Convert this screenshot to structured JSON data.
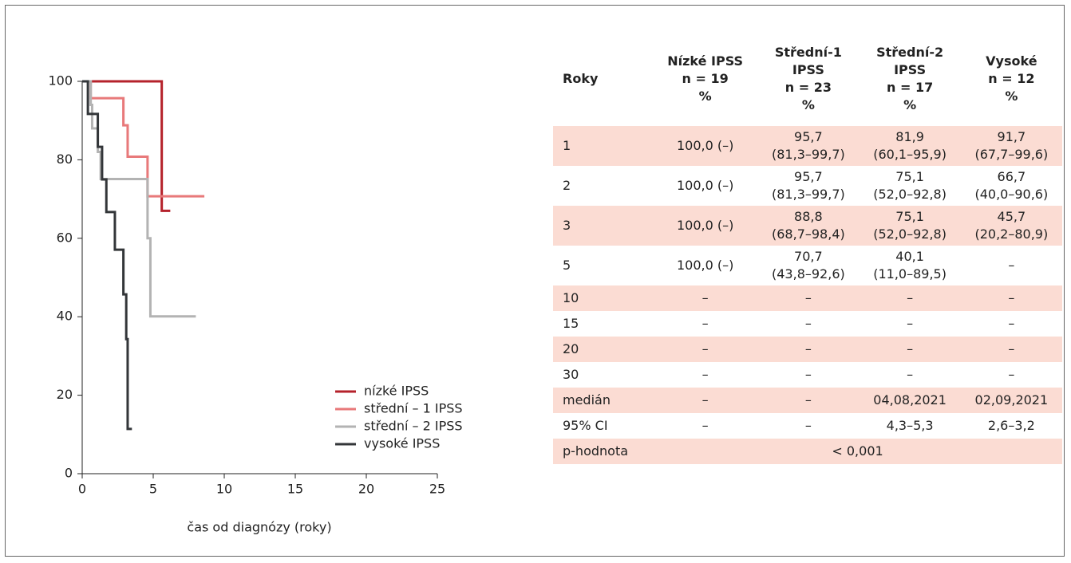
{
  "chart_data": {
    "type": "step",
    "xlabel": "čas od diagnózy (roky)",
    "xlim": [
      0,
      25
    ],
    "xticks": [
      0,
      5,
      10,
      15,
      20,
      25
    ],
    "ylim": [
      0,
      100
    ],
    "yticks": [
      0,
      20,
      40,
      60,
      80,
      100
    ],
    "series": [
      {
        "name": "nízké IPSS",
        "color": "#b5222b",
        "x": [
          0,
          5.6,
          6.2
        ],
        "values": [
          100,
          67,
          67
        ]
      },
      {
        "name": "střední – 1 IPSS",
        "color": "#e8797a",
        "x": [
          0,
          0.6,
          2.9,
          3.2,
          4.6,
          8.6
        ],
        "values": [
          100,
          95.7,
          88.8,
          80.8,
          70.7,
          70.7
        ]
      },
      {
        "name": "střední – 2 IPSS",
        "color": "#b3b3b3",
        "x": [
          0,
          0.6,
          0.7,
          1.1,
          1.3,
          4.6,
          4.8,
          8
        ],
        "values": [
          100,
          94,
          88,
          82,
          75.1,
          60,
          40.1,
          40.1
        ]
      },
      {
        "name": "vysoké IPSS",
        "color": "#333639",
        "x": [
          0,
          0.4,
          1.1,
          1.4,
          1.7,
          2.3,
          2.9,
          3.1,
          3.2,
          3.5
        ],
        "values": [
          100,
          91.7,
          83.3,
          75,
          66.7,
          57.1,
          45.7,
          34.3,
          11.4,
          11.4
        ]
      }
    ]
  },
  "table": {
    "header": [
      "Roky",
      "Nízké IPSS\nn = 19\n%",
      "Střední-1\nIPSS\nn = 23\n%",
      "Střední-2\nIPSS\nn = 17\n%",
      "Vysoké\nn = 12\n%"
    ],
    "rows": [
      [
        "1",
        "100,0 (–)",
        "95,7\n(81,3–99,7)",
        "81,9\n(60,1–95,9)",
        "91,7\n(67,7–99,6)"
      ],
      [
        "2",
        "100,0 (–)",
        "95,7\n(81,3–99,7)",
        "75,1\n(52,0–92,8)",
        "66,7\n(40,0–90,6)"
      ],
      [
        "3",
        "100,0 (–)",
        "88,8\n(68,7–98,4)",
        "75,1\n(52,0–92,8)",
        "45,7\n(20,2–80,9)"
      ],
      [
        "5",
        "100,0 (–)",
        "70,7\n(43,8–92,6)",
        "40,1\n(11,0–89,5)",
        "–"
      ],
      [
        "10",
        "–",
        "–",
        "–",
        "–"
      ],
      [
        "15",
        "–",
        "–",
        "–",
        "–"
      ],
      [
        "20",
        "–",
        "–",
        "–",
        "–"
      ],
      [
        "30",
        "–",
        "–",
        "–",
        "–"
      ],
      [
        "medián",
        "–",
        "–",
        "04,08,2021",
        "02,09,2021"
      ],
      [
        "95% CI",
        "–",
        "–",
        "4,3–5,3",
        "2,6–3,2"
      ],
      [
        "p-hodnota",
        "< 0,001"
      ]
    ]
  }
}
